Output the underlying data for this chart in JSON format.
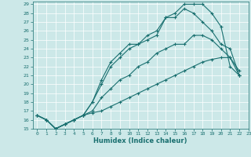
{
  "xlabel": "Humidex (Indice chaleur)",
  "background_color": "#cce8e8",
  "line_color": "#1a7070",
  "xlim": [
    -0.5,
    23
  ],
  "ylim": [
    15,
    29.3
  ],
  "yticks": [
    15,
    16,
    17,
    18,
    19,
    20,
    21,
    22,
    23,
    24,
    25,
    26,
    27,
    28,
    29
  ],
  "xticks": [
    0,
    1,
    2,
    3,
    4,
    5,
    6,
    7,
    8,
    9,
    10,
    11,
    12,
    13,
    14,
    15,
    16,
    17,
    18,
    19,
    20,
    21,
    22,
    23
  ],
  "curves": [
    {
      "x": [
        0,
        1,
        2,
        3,
        4,
        5,
        6,
        7,
        8,
        9,
        10,
        11,
        12,
        13,
        14,
        15,
        16,
        17,
        18,
        19,
        20,
        21,
        22
      ],
      "y": [
        16.5,
        16.0,
        15.0,
        15.5,
        16.0,
        16.5,
        18.0,
        20.5,
        22.5,
        23.5,
        24.5,
        24.5,
        25.5,
        26.0,
        27.5,
        28.0,
        29.0,
        29.0,
        29.0,
        28.0,
        26.5,
        22.0,
        21.0
      ]
    },
    {
      "x": [
        0,
        1,
        2,
        3,
        4,
        5,
        6,
        7,
        8,
        9,
        10,
        11,
        12,
        13,
        14,
        15,
        16,
        17,
        18,
        19,
        20,
        21,
        22
      ],
      "y": [
        16.5,
        16.0,
        15.0,
        15.5,
        16.0,
        16.5,
        18.0,
        20.0,
        22.0,
        23.0,
        24.0,
        24.5,
        25.0,
        25.5,
        27.5,
        27.5,
        28.5,
        28.0,
        27.0,
        26.0,
        24.5,
        24.0,
        21.0
      ]
    },
    {
      "x": [
        0,
        1,
        2,
        3,
        4,
        5,
        6,
        7,
        8,
        9,
        10,
        11,
        12,
        13,
        14,
        15,
        16,
        17,
        18,
        19,
        20,
        21,
        22
      ],
      "y": [
        16.5,
        16.0,
        15.0,
        15.5,
        16.0,
        16.5,
        17.0,
        18.5,
        19.5,
        20.5,
        21.0,
        22.0,
        22.5,
        23.5,
        24.0,
        24.5,
        24.5,
        25.5,
        25.5,
        25.0,
        24.0,
        23.0,
        21.5
      ]
    },
    {
      "x": [
        0,
        1,
        2,
        3,
        4,
        5,
        6,
        7,
        8,
        9,
        10,
        11,
        12,
        13,
        14,
        15,
        16,
        17,
        18,
        19,
        20,
        21,
        22
      ],
      "y": [
        16.5,
        16.0,
        15.0,
        15.5,
        16.0,
        16.5,
        16.8,
        17.0,
        17.5,
        18.0,
        18.5,
        19.0,
        19.5,
        20.0,
        20.5,
        21.0,
        21.5,
        22.0,
        22.5,
        22.8,
        23.0,
        23.0,
        21.0
      ]
    }
  ]
}
